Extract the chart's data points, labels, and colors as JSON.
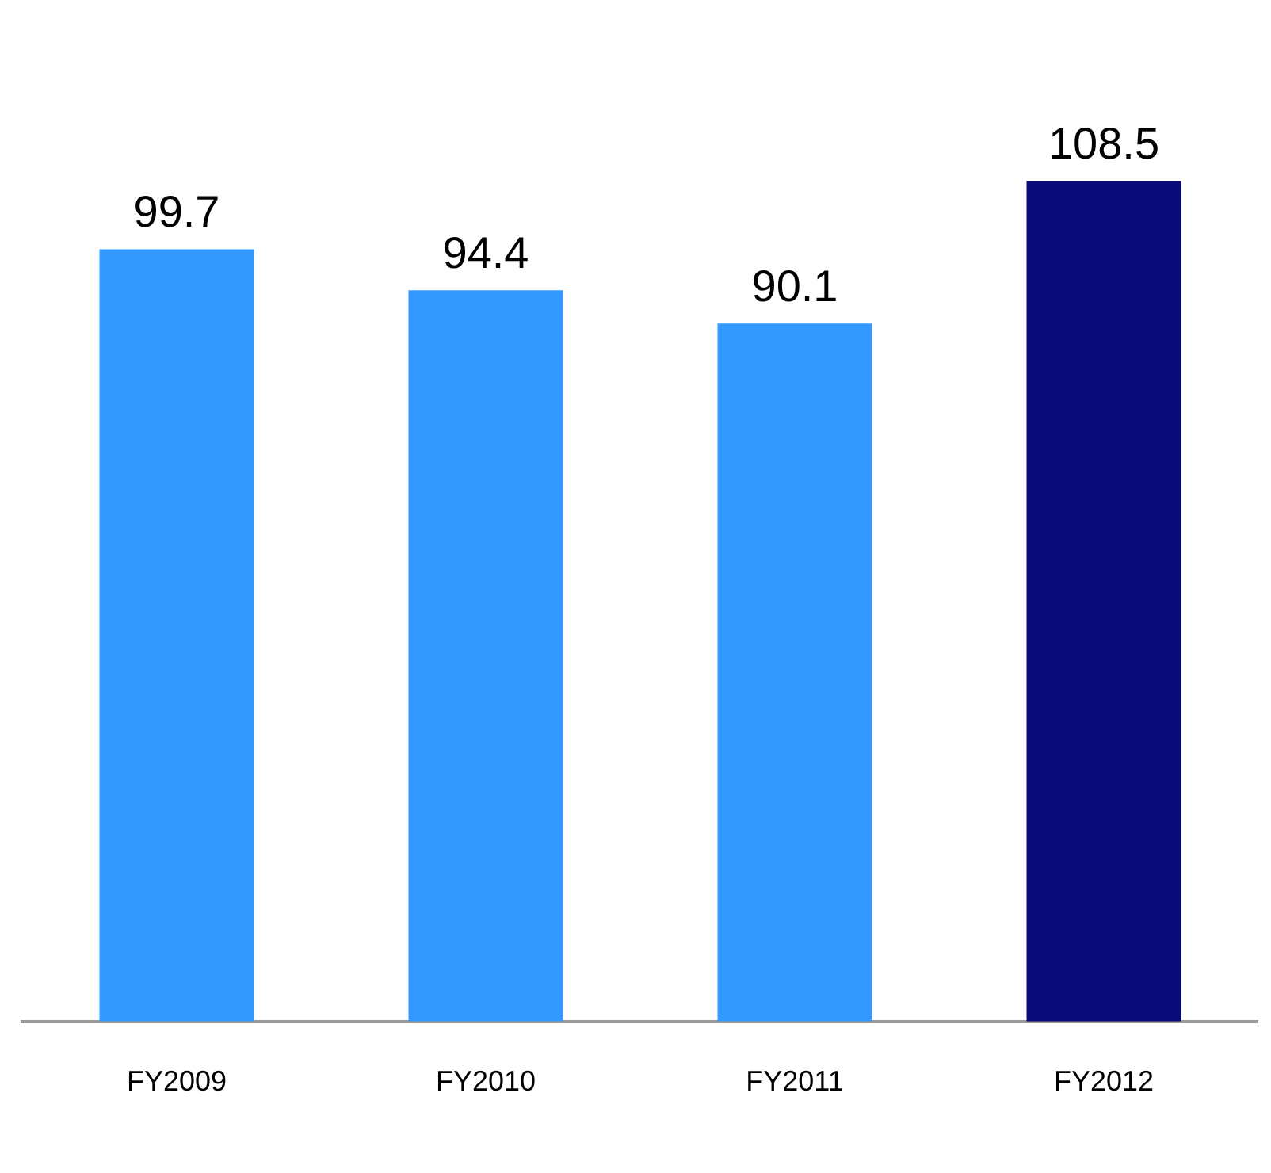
{
  "chart_data": {
    "type": "bar",
    "categories": [
      "FY2009",
      "FY2010",
      "FY2011",
      "FY2012"
    ],
    "values": [
      99.7,
      94.4,
      90.1,
      108.5
    ],
    "colors": [
      "#3399ff",
      "#3399ff",
      "#3399ff",
      "#0a0a7a"
    ],
    "data_labels": true,
    "grid": false,
    "legend": false
  }
}
